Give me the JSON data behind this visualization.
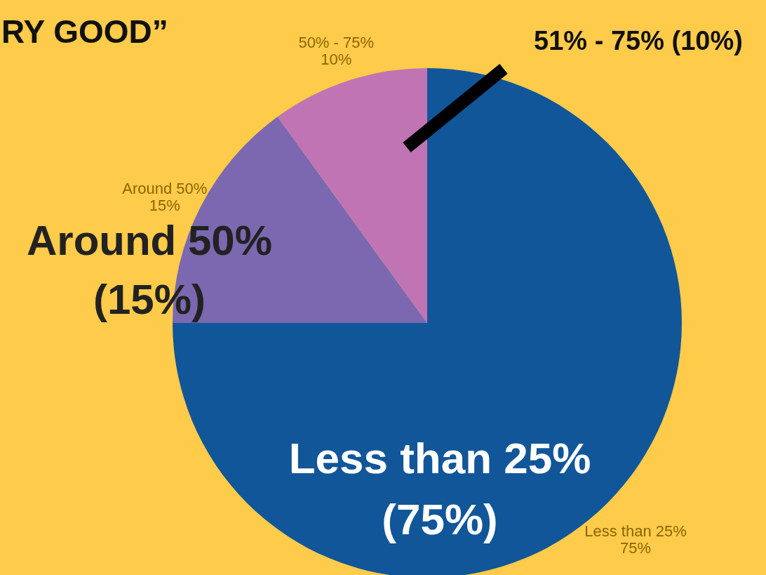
{
  "chart_data": {
    "type": "pie",
    "title": "RY GOOD”",
    "categories": [
      "Less than 25%",
      "Around 50%",
      "50% - 75%"
    ],
    "values": [
      75,
      15,
      10
    ],
    "colors": [
      "#115699",
      "#7b68b0",
      "#c074b4"
    ],
    "value_labels": [
      "75%",
      "15%",
      "10%"
    ],
    "annotations": [
      "Less than 25%\n(75%)",
      "Around 50%\n(15%)",
      "51% - 75% (10%)"
    ]
  }
}
